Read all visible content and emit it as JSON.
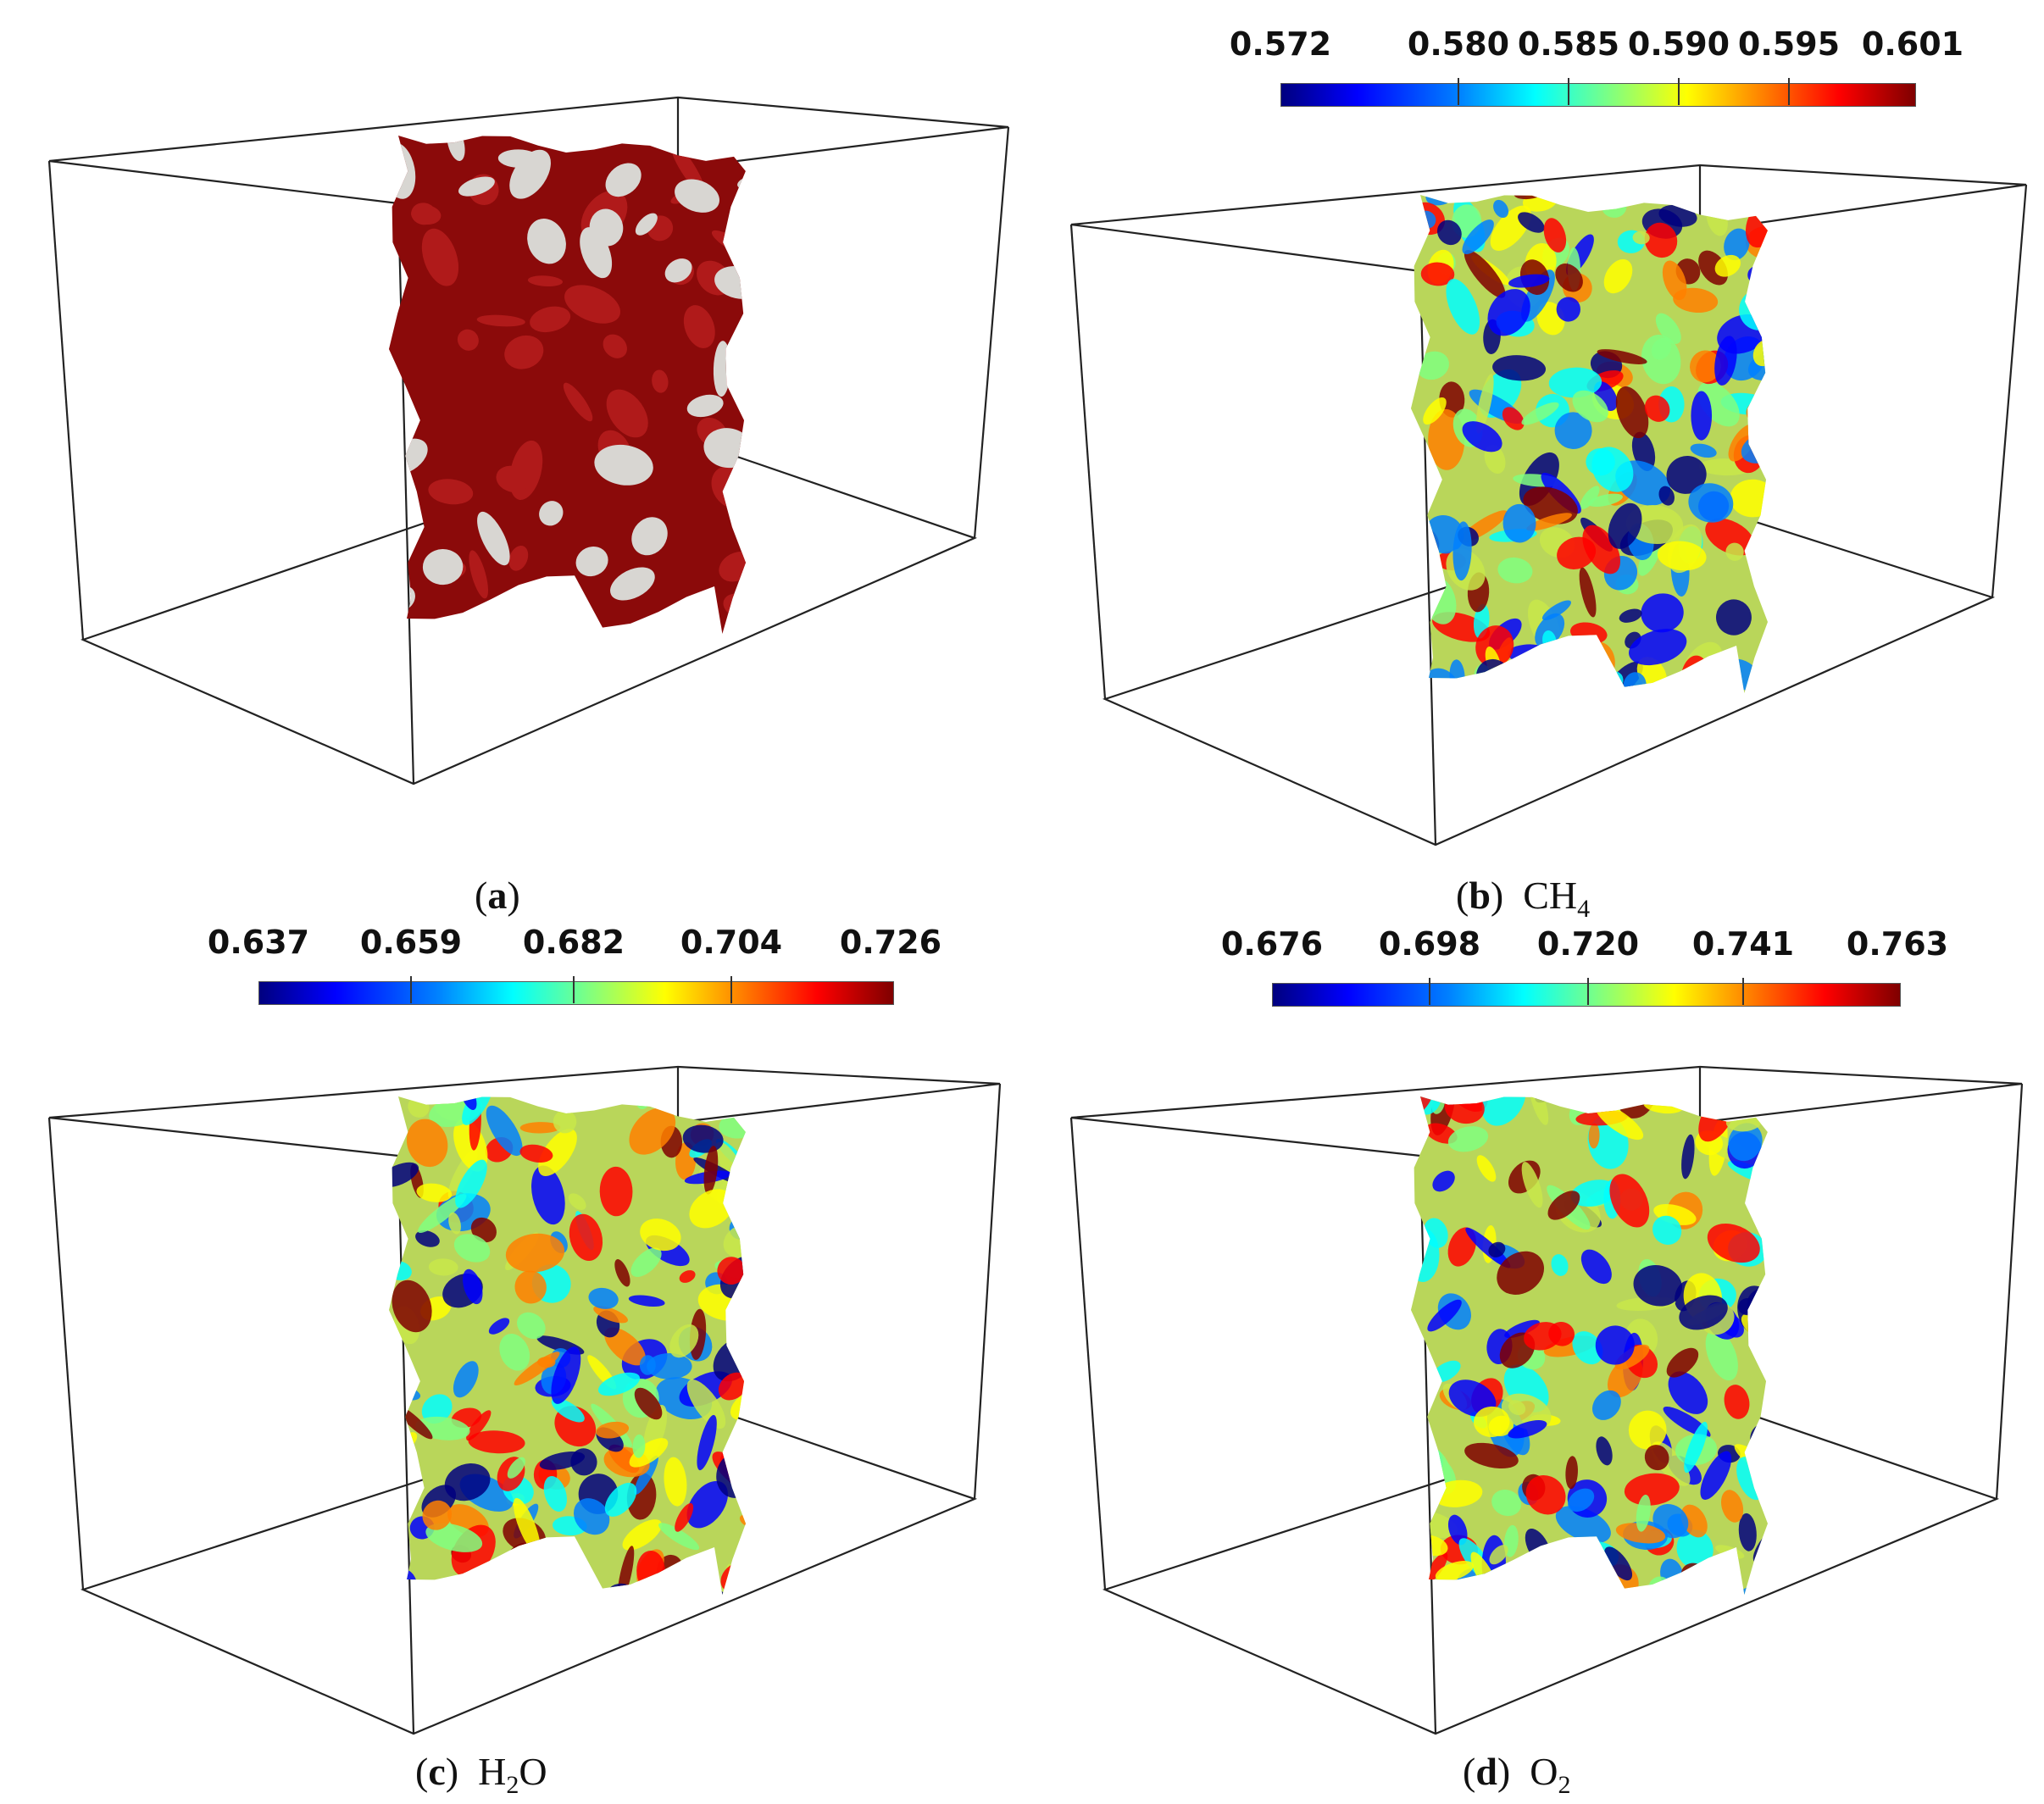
{
  "panels": {
    "a": {
      "caption_label": "a",
      "caption_rest": "",
      "scheme": "solid"
    },
    "b": {
      "caption_label": "b",
      "caption_species": "CH",
      "caption_sub": "4",
      "caption_after": "",
      "colorbar": [
        "0.572",
        "0.580",
        "0.585",
        "0.590",
        "0.595",
        "0.601"
      ],
      "scheme": "jet"
    },
    "c": {
      "caption_label": "c",
      "caption_species": "H",
      "caption_sub": "2",
      "caption_after": "O",
      "colorbar": [
        "0.637",
        "0.659",
        "0.682",
        "0.704",
        "0.726"
      ],
      "scheme": "jet"
    },
    "d": {
      "caption_label": "d",
      "caption_species": "O",
      "caption_sub": "2",
      "caption_after": "",
      "colorbar": [
        "0.676",
        "0.698",
        "0.720",
        "0.741",
        "0.763"
      ],
      "scheme": "jet"
    }
  },
  "colors": {
    "solid_surface": "#8b0a0a",
    "solid_highlight": "#b01a1a",
    "pore": "#d8d6d2",
    "box_line": "#222222"
  }
}
